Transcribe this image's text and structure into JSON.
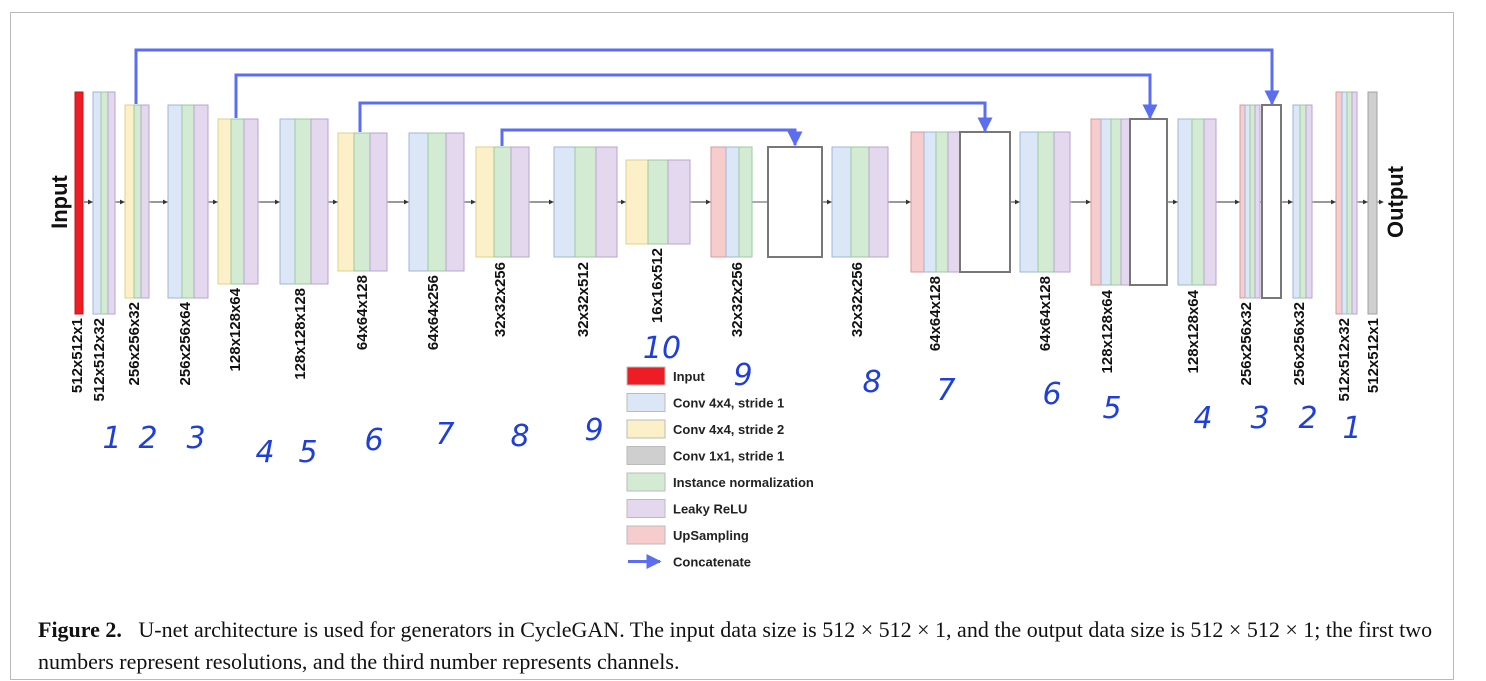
{
  "diagram": {
    "input_label": "Input",
    "output_label": "Output",
    "encoder_dims": [
      "512x512x1",
      "512x512x32",
      "256x256x32",
      "256x256x64",
      "128x128x64",
      "128x128x128",
      "64x64x128",
      "64x64x256",
      "32x32x256",
      "32x32x512",
      "16x16x512"
    ],
    "decoder_dims": [
      "32x32x256",
      "32x32x256",
      "64x64x128",
      "64x64x128",
      "128x128x64",
      "128x128x64",
      "256x256x32",
      "256x256x32",
      "512x512x32",
      "512x512x1"
    ],
    "handwritten_encoder": [
      "1",
      "2",
      "3",
      "4",
      "5",
      "6",
      "7",
      "8",
      "9",
      "10"
    ],
    "handwritten_decoder": [
      "9",
      "8",
      "7",
      "6",
      "5",
      "4",
      "3",
      "2",
      "1"
    ],
    "legend": [
      {
        "label": "Input",
        "color": "#ee1c25"
      },
      {
        "label": "Conv 4x4, stride 1",
        "color": "#dbe6f7"
      },
      {
        "label": "Conv 4x4, stride 2",
        "color": "#fbf0c8"
      },
      {
        "label": "Conv 1x1, stride 1",
        "color": "#cfcfcf"
      },
      {
        "label": "Instance normalization",
        "color": "#d3ebd3"
      },
      {
        "label": "Leaky ReLU",
        "color": "#e4d8ef"
      },
      {
        "label": "UpSampling",
        "color": "#f6cccc"
      },
      {
        "label": "Concatenate",
        "color": "#5b6ef0"
      }
    ]
  },
  "caption": {
    "label": "Figure 2.",
    "text": "U-net architecture is used for generators in CycleGAN. The input data size is 512 × 512 × 1, and the output data size is 512 × 512 × 1; the first two numbers represent resolutions, and the third number represents channels."
  }
}
